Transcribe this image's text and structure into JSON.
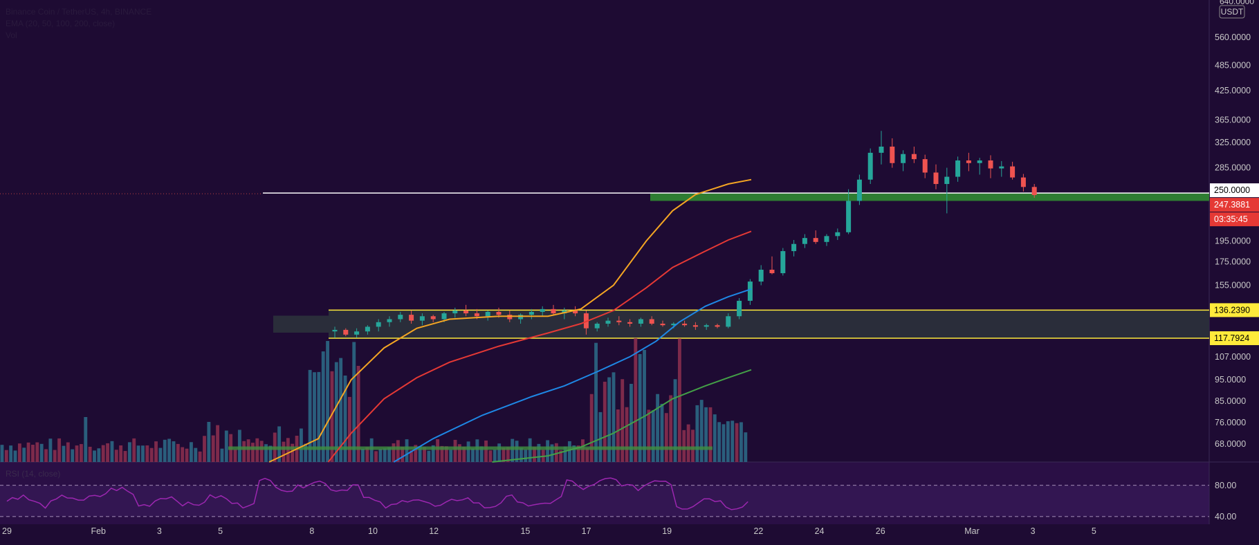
{
  "header": {
    "symbol_line": "Binance Coin / TetherUS, 4h, BINANCE",
    "ema_line": "EMA (20, 50, 100, 200, close)",
    "vol_line": "Vol"
  },
  "rsi_label": "RSI (14, close)",
  "price_axis": {
    "unit_badge": "USDT",
    "top_tick": "640.0000",
    "ticks": [
      "560.0000",
      "485.0000",
      "425.0000",
      "365.0000",
      "325.0000",
      "285.0000",
      "195.0000",
      "175.0000",
      "155.0000",
      "107.0000",
      "95.0000",
      "85.0000",
      "76.0000",
      "68.0000"
    ],
    "tick_values": [
      560,
      485,
      425,
      365,
      325,
      285,
      195,
      175,
      155,
      107,
      95,
      85,
      76,
      68
    ],
    "scale": "log"
  },
  "rsi_axis": {
    "ticks": [
      "80.00",
      "40.00"
    ]
  },
  "time_axis": [
    "29",
    "Feb",
    "3",
    "5",
    "8",
    "10",
    "12",
    "15",
    "17",
    "19",
    "22",
    "24",
    "26",
    "Mar",
    "3",
    "5"
  ],
  "labels": {
    "resistance": "250.0000",
    "last_price": "247.3881",
    "countdown": "03:35:45",
    "range_high": "136.2390",
    "range_low": "117.7924"
  },
  "colors": {
    "background": "#1e0b33",
    "up": "#26a69a",
    "down": "#ef5350",
    "ema20": "#f5a623",
    "ema50": "#e53935",
    "ema100": "#1e88e5",
    "ema200": "#43a047",
    "rsi": "#9c27b0",
    "zone_green": "#2e7d32",
    "zone_range": "#2a2d3a",
    "yellow": "#ffeb3b"
  },
  "chart_data": {
    "type": "candlestick",
    "interval": "4h",
    "x_range": [
      "Jan 29",
      "Mar 6"
    ],
    "y_scale": "log",
    "ylim": [
      62,
      680
    ],
    "levels": {
      "resistance": 250,
      "range_high": 136.239,
      "range_low": 117.7924
    },
    "zones": [
      {
        "name": "support",
        "from": 240,
        "to": 250
      },
      {
        "name": "range",
        "from": 117.7924,
        "to": 136.239
      }
    ],
    "candles_per_day": 6,
    "candles": [
      [
        122,
        125,
        118,
        123
      ],
      [
        123,
        124,
        119,
        120
      ],
      [
        120,
        124,
        118,
        122
      ],
      [
        122,
        126,
        120,
        125
      ],
      [
        125,
        130,
        122,
        128
      ],
      [
        128,
        132,
        125,
        130
      ],
      [
        130,
        135,
        128,
        133
      ],
      [
        133,
        136,
        127,
        129
      ],
      [
        129,
        134,
        126,
        132
      ],
      [
        132,
        133,
        128,
        130
      ],
      [
        130,
        135,
        128,
        134
      ],
      [
        134,
        138,
        131,
        136
      ],
      [
        136,
        140,
        132,
        134
      ],
      [
        134,
        137,
        130,
        132
      ],
      [
        132,
        136,
        129,
        135
      ],
      [
        135,
        138,
        131,
        133
      ],
      [
        133,
        136,
        128,
        130
      ],
      [
        130,
        134,
        127,
        133
      ],
      [
        133,
        137,
        130,
        135
      ],
      [
        135,
        139,
        132,
        137
      ],
      [
        137,
        140,
        133,
        134
      ],
      [
        134,
        138,
        130,
        136
      ],
      [
        136,
        139,
        132,
        134
      ],
      [
        134,
        136,
        120,
        124
      ],
      [
        124,
        128,
        122,
        127
      ],
      [
        127,
        131,
        125,
        129
      ],
      [
        129,
        132,
        126,
        128
      ],
      [
        128,
        130,
        125,
        127
      ],
      [
        127,
        131,
        125,
        130
      ],
      [
        130,
        132,
        126,
        127
      ],
      [
        127,
        129,
        125,
        126
      ],
      [
        126,
        128,
        124,
        127
      ],
      [
        127,
        129,
        125,
        126
      ],
      [
        126,
        128,
        123,
        125
      ],
      [
        125,
        127,
        123,
        126
      ],
      [
        126,
        127,
        124,
        125
      ],
      [
        125,
        134,
        124,
        132
      ],
      [
        132,
        145,
        130,
        143
      ],
      [
        143,
        160,
        140,
        158
      ],
      [
        158,
        172,
        155,
        168
      ],
      [
        168,
        180,
        164,
        165
      ],
      [
        165,
        188,
        163,
        185
      ],
      [
        185,
        196,
        180,
        192
      ],
      [
        192,
        202,
        188,
        198
      ],
      [
        198,
        206,
        192,
        194
      ],
      [
        194,
        202,
        190,
        200
      ],
      [
        200,
        208,
        196,
        204
      ],
      [
        204,
        255,
        202,
        240
      ],
      [
        240,
        275,
        235,
        268
      ],
      [
        268,
        315,
        262,
        308
      ],
      [
        308,
        345,
        290,
        318
      ],
      [
        318,
        332,
        285,
        292
      ],
      [
        292,
        312,
        280,
        306
      ],
      [
        306,
        318,
        292,
        298
      ],
      [
        298,
        305,
        270,
        278
      ],
      [
        278,
        290,
        255,
        262
      ],
      [
        262,
        285,
        225,
        272
      ],
      [
        272,
        302,
        265,
        296
      ],
      [
        296,
        308,
        280,
        292
      ],
      [
        292,
        300,
        275,
        296
      ],
      [
        296,
        304,
        270,
        284
      ],
      [
        284,
        295,
        272,
        287
      ],
      [
        287,
        294,
        268,
        271
      ],
      [
        271,
        276,
        252,
        258
      ],
      [
        258,
        262,
        244,
        247.3881
      ]
    ],
    "ema20_end": 268,
    "ema50_end": 205,
    "ema100_end": 152,
    "ema200_end": 100,
    "rsi_range": [
      20,
      100
    ],
    "rsi_levels": [
      70,
      30
    ],
    "rsi_end": 49
  }
}
